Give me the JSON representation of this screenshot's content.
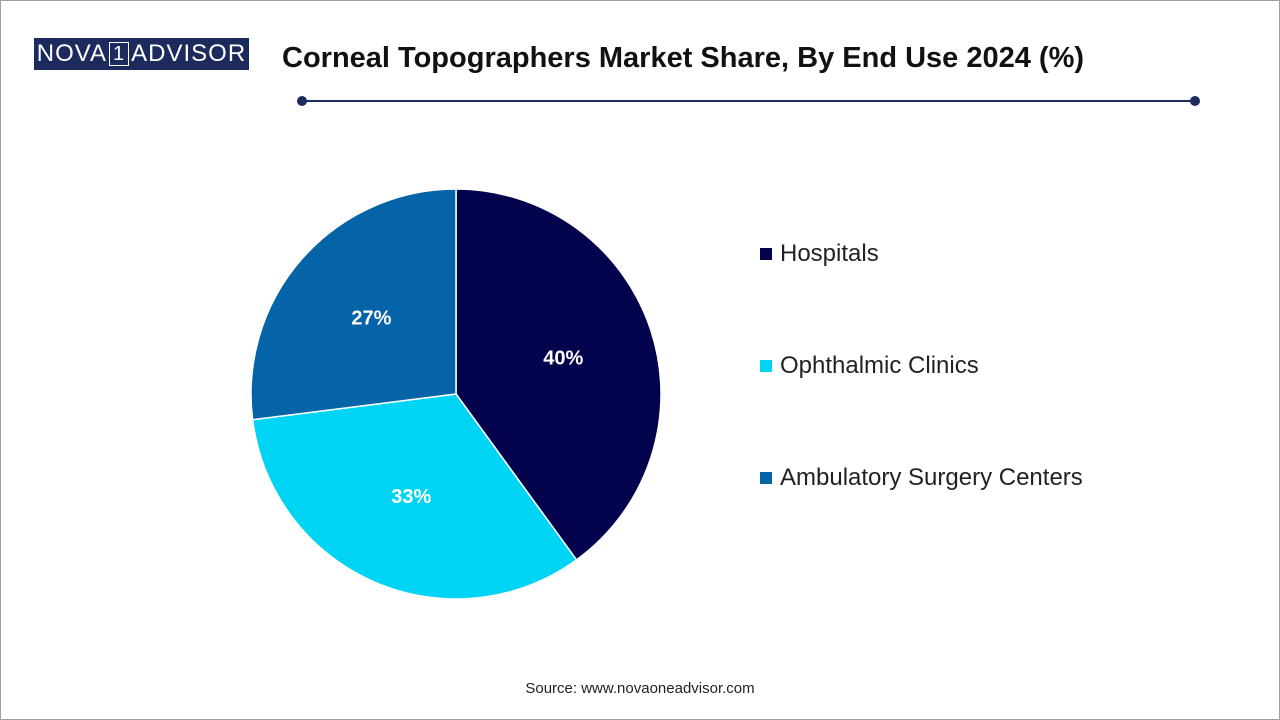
{
  "logo": {
    "text_left": "NOVA",
    "text_mid": "1",
    "text_right": "ADVISOR",
    "color": "#1c2a5e"
  },
  "header": {
    "title": "Corneal Topographers Market Share, By End Use 2024 (%)"
  },
  "chart_data": {
    "type": "pie",
    "title": "Corneal Topographers Market Share, By End Use 2024 (%)",
    "categories": [
      "Hospitals",
      "Ophthalmic Clinics",
      "Ambulatory Surgery Centers"
    ],
    "values": [
      40,
      33,
      27
    ],
    "labels": [
      "40%",
      "33%",
      "27%"
    ],
    "colors": [
      "#03034d",
      "#00d4f5",
      "#0563a8"
    ],
    "label_color": "#ffffff",
    "legend_position": "right"
  },
  "legend": {
    "items": [
      {
        "label": "Hospitals",
        "color": "#03034d"
      },
      {
        "label": "Ophthalmic Clinics",
        "color": "#00d4f5"
      },
      {
        "label": "Ambulatory Surgery Centers",
        "color": "#0563a8"
      }
    ]
  },
  "footer": {
    "source": "Source: www.novaoneadvisor.com"
  }
}
